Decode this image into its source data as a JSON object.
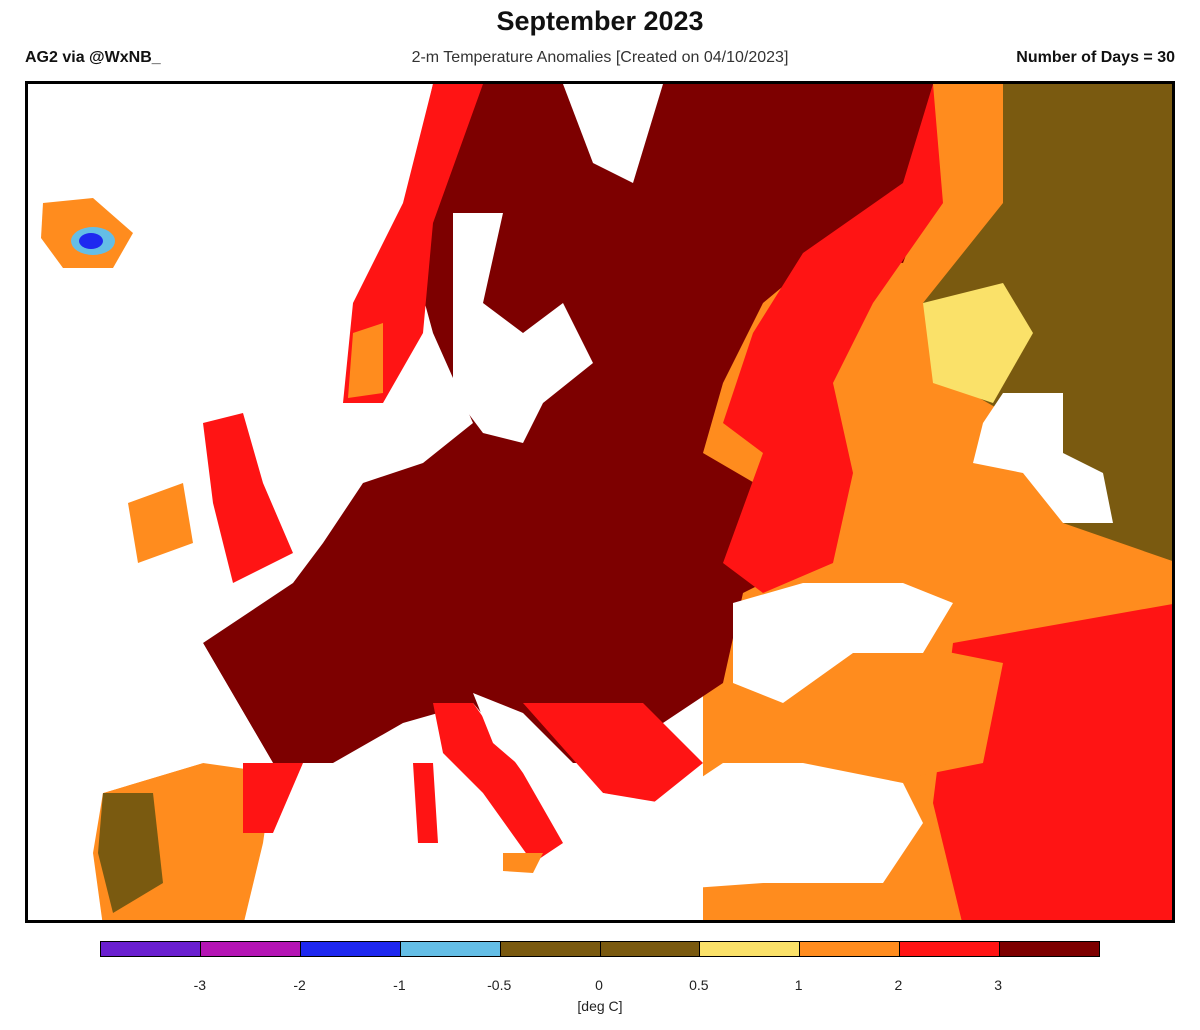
{
  "header": {
    "title": "September 2023",
    "source": "AG2 via @WxNB_",
    "subtitle": "2-m Temperature Anomalies [Created on 04/10/2023]",
    "days": "Number of Days = 30"
  },
  "colorbar": {
    "colors": [
      "#6a1fd0",
      "#b414b4",
      "#1e28f0",
      "#64bee6",
      "#7a5a10",
      "#7a5a10",
      "#fae169",
      "#ff8c1e",
      "#ff1414",
      "#7d0000"
    ],
    "ticks": [
      "-3",
      "-2",
      "-1",
      "-0.5",
      "0",
      "0.5",
      "1",
      "2",
      "3"
    ],
    "unit": "[deg C]"
  }
}
